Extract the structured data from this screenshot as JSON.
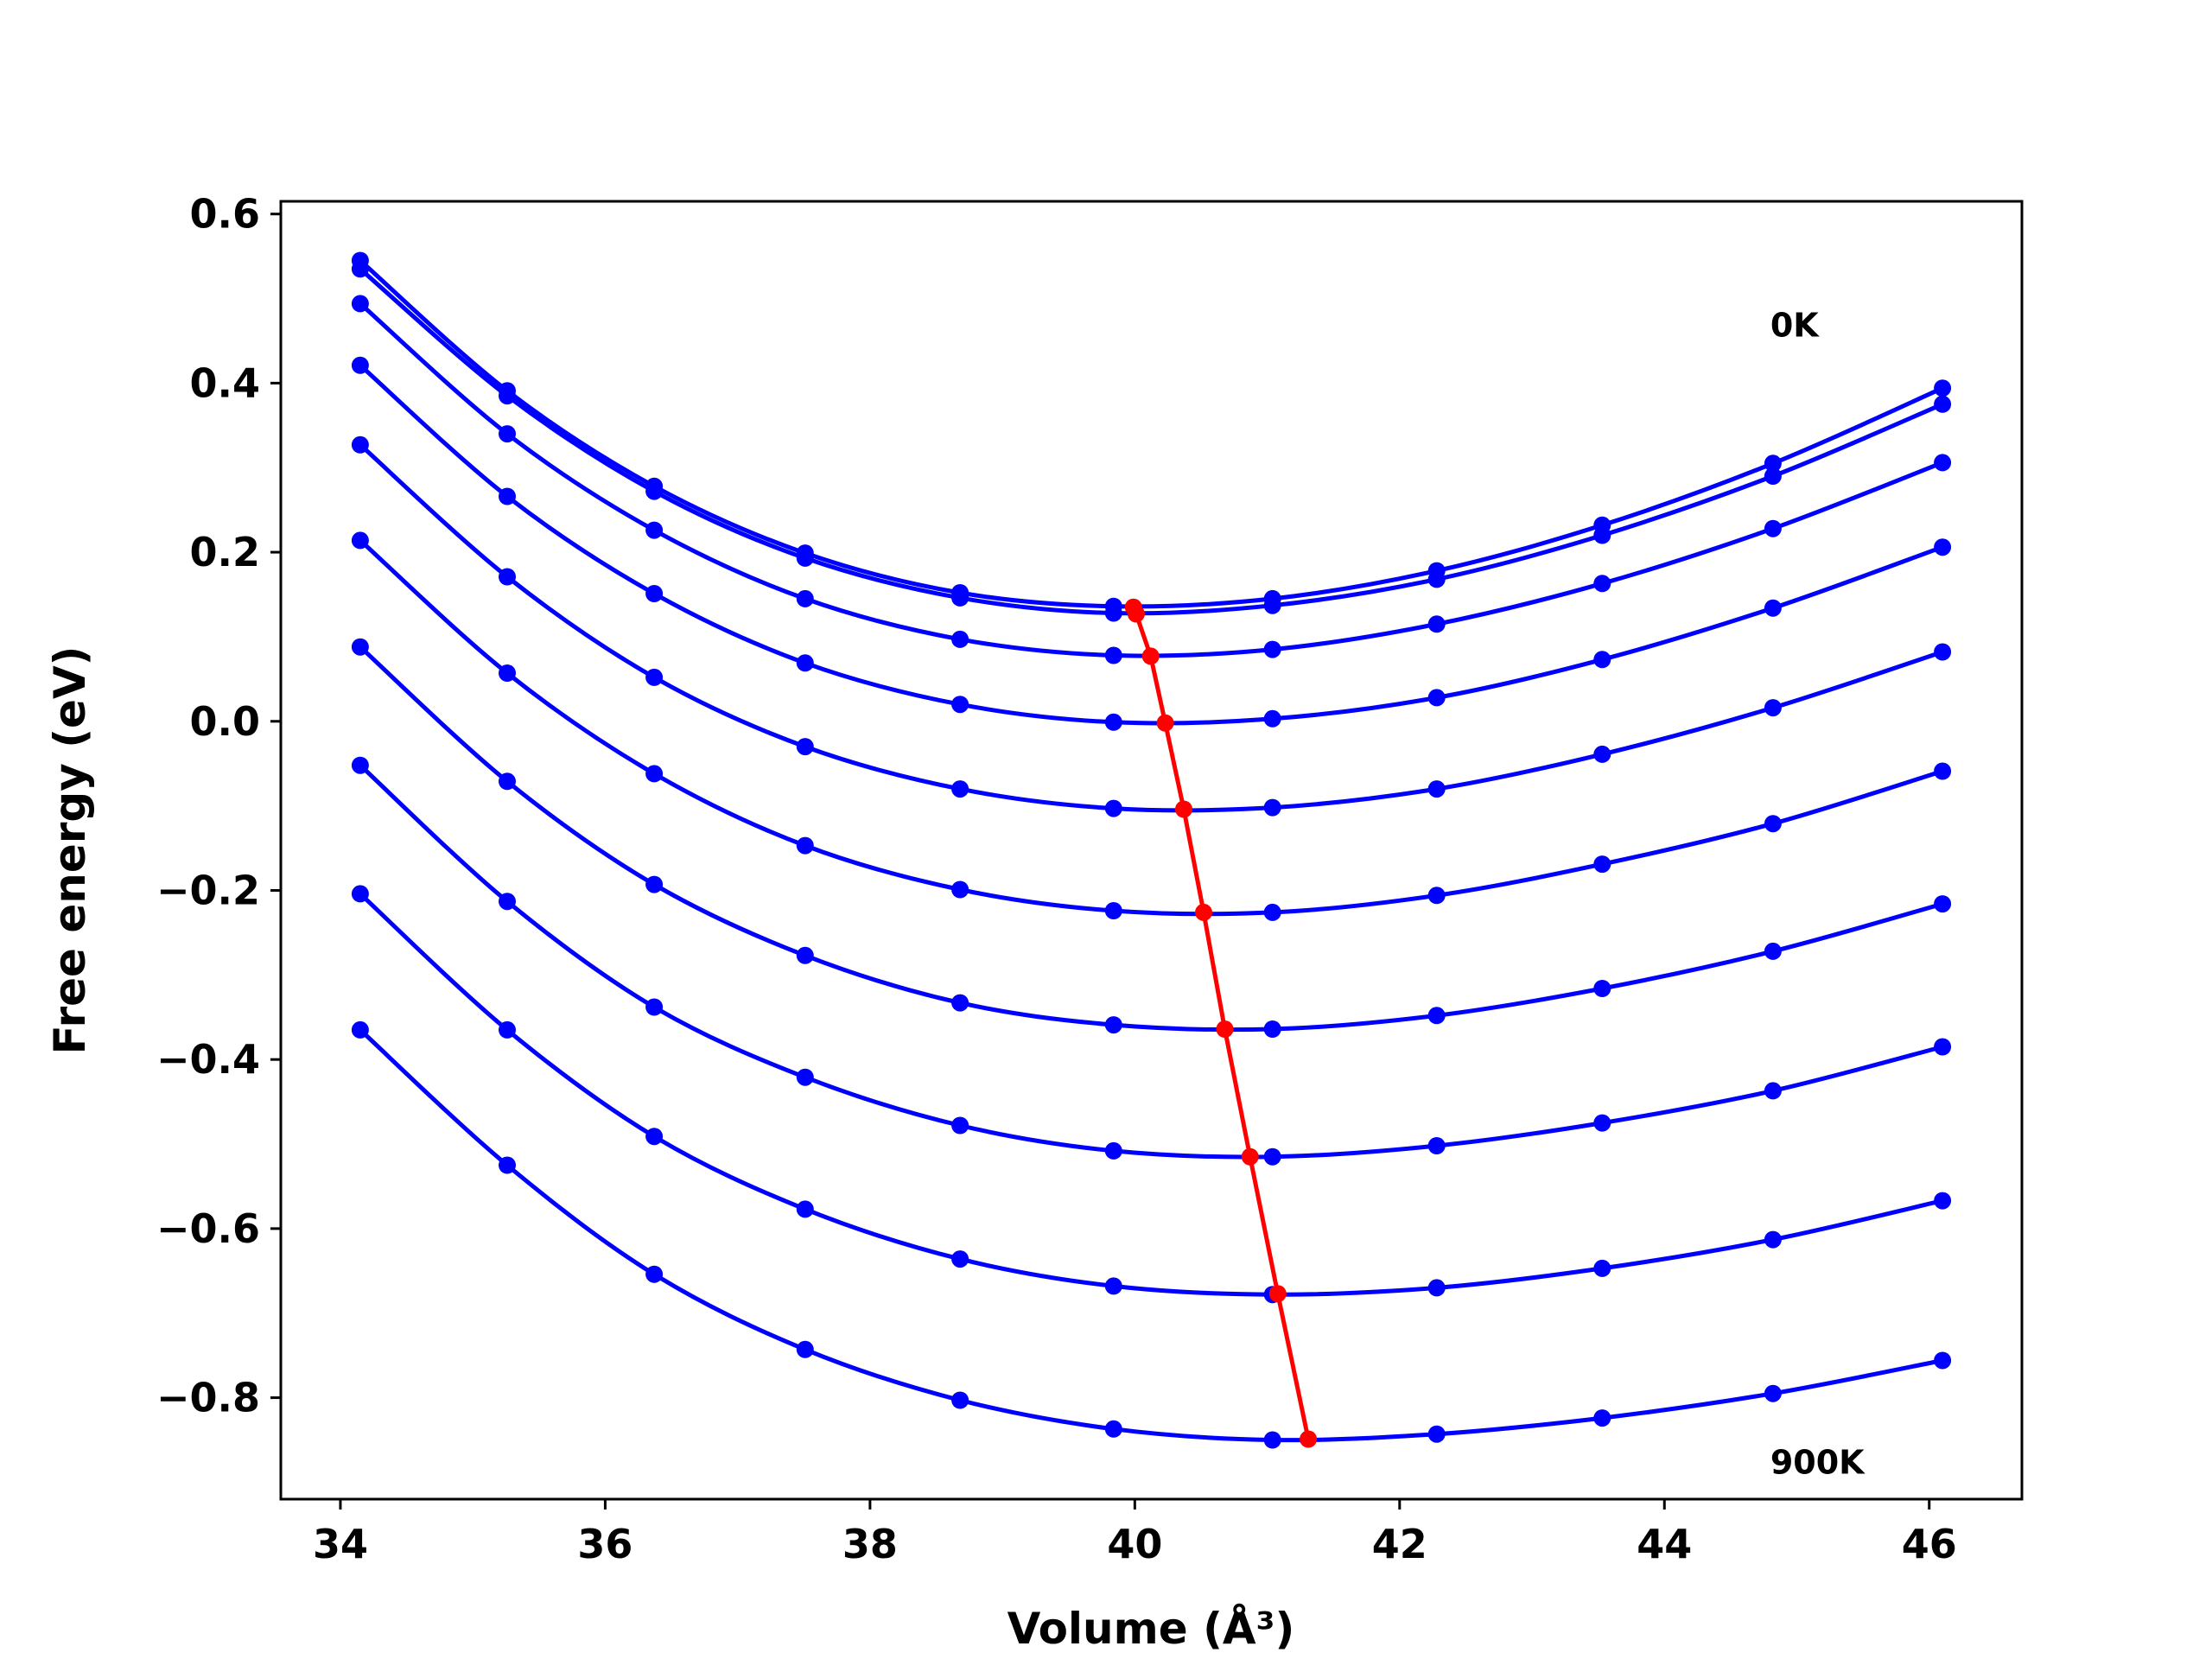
{
  "chart_data": {
    "type": "line",
    "title": "",
    "xlabel": "Volume (Å³)",
    "ylabel": "Free energy (eV)",
    "xlim": [
      33.55,
      46.7
    ],
    "ylim": [
      -0.92,
      0.615
    ],
    "x_ticks": [
      34,
      36,
      38,
      40,
      42,
      44,
      46
    ],
    "x_tick_labels": [
      "34",
      "36",
      "38",
      "40",
      "42",
      "44",
      "46"
    ],
    "y_ticks": [
      -0.8,
      -0.6,
      -0.4,
      -0.2,
      0.0,
      0.2,
      0.4,
      0.6
    ],
    "y_tick_labels": [
      "−0.8",
      "−0.6",
      "−0.4",
      "−0.2",
      "0.0",
      "0.2",
      "0.4",
      "0.6"
    ],
    "grid": false,
    "annotations": [
      {
        "text": "0K",
        "x": 44.8,
        "y": 0.455
      },
      {
        "text": "900K",
        "x": 44.8,
        "y": -0.89
      }
    ],
    "volumes": [
      34.15,
      35.26,
      36.37,
      37.51,
      38.68,
      39.84,
      41.04,
      42.28,
      43.53,
      44.82,
      46.1
    ],
    "series_color": "#0000ff",
    "minima_color": "#ff0000",
    "series": [
      {
        "values": [
          0.545,
          0.391,
          0.278,
          0.199,
          0.152,
          0.136,
          0.145,
          0.178,
          0.232,
          0.305,
          0.394
        ]
      },
      {
        "values": [
          0.535,
          0.385,
          0.272,
          0.193,
          0.146,
          0.128,
          0.137,
          0.168,
          0.22,
          0.29,
          0.375
        ]
      },
      {
        "values": [
          0.494,
          0.34,
          0.226,
          0.145,
          0.097,
          0.078,
          0.085,
          0.115,
          0.163,
          0.228,
          0.306
        ]
      },
      {
        "values": [
          0.421,
          0.266,
          0.151,
          0.069,
          0.02,
          -0.001,
          0.003,
          0.028,
          0.073,
          0.134,
          0.206
        ]
      },
      {
        "values": [
          0.327,
          0.171,
          0.052,
          -0.03,
          -0.08,
          -0.103,
          -0.102,
          -0.08,
          -0.039,
          0.016,
          0.082
        ]
      },
      {
        "values": [
          0.214,
          0.057,
          -0.062,
          -0.147,
          -0.199,
          -0.224,
          -0.226,
          -0.206,
          -0.169,
          -0.121,
          -0.059
        ]
      },
      {
        "values": [
          0.088,
          -0.071,
          -0.193,
          -0.277,
          -0.333,
          -0.359,
          -0.364,
          -0.348,
          -0.316,
          -0.272,
          -0.216
        ]
      },
      {
        "values": [
          -0.052,
          -0.213,
          -0.338,
          -0.421,
          -0.478,
          -0.508,
          -0.515,
          -0.502,
          -0.475,
          -0.437,
          -0.385
        ]
      },
      {
        "values": [
          -0.204,
          -0.365,
          -0.491,
          -0.577,
          -0.636,
          -0.668,
          -0.678,
          -0.67,
          -0.647,
          -0.613,
          -0.567
        ]
      },
      {
        "values": [
          -0.365,
          -0.525,
          -0.654,
          -0.743,
          -0.803,
          -0.837,
          -0.85,
          -0.843,
          -0.824,
          -0.795,
          -0.756
        ]
      }
    ],
    "minima": {
      "x": [
        39.99,
        40.01,
        40.12,
        40.23,
        40.37,
        40.52,
        40.68,
        40.87,
        41.08,
        41.31
      ],
      "y": [
        0.135,
        0.127,
        0.077,
        -0.002,
        -0.104,
        -0.226,
        -0.364,
        -0.515,
        -0.677,
        -0.849
      ]
    }
  }
}
